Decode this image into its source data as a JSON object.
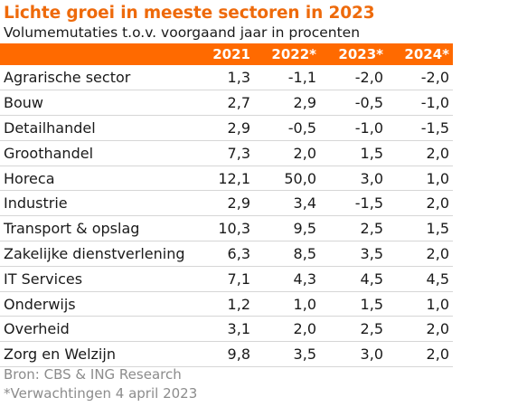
{
  "colors": {
    "accent": "#ff6a00",
    "title": "#ee6a0b",
    "footer": "#8c8c8c"
  },
  "chart_data": {
    "type": "table",
    "title": "Lichte groei in meeste sectoren in 2023",
    "subtitle": "Volumemutaties t.o.v. voorgaand jaar in procenten",
    "columns": [
      "",
      "2021",
      "2022*",
      "2023*",
      "2024*"
    ],
    "rows": [
      {
        "sector": "Agrarische sector",
        "values": [
          "1,3",
          "-1,1",
          "-2,0",
          "-2,0"
        ]
      },
      {
        "sector": "Bouw",
        "values": [
          "2,7",
          "2,9",
          "-0,5",
          "-1,0"
        ]
      },
      {
        "sector": "Detailhandel",
        "values": [
          "2,9",
          "-0,5",
          "-1,0",
          "-1,5"
        ]
      },
      {
        "sector": "Groothandel",
        "values": [
          "7,3",
          "2,0",
          "1,5",
          "2,0"
        ]
      },
      {
        "sector": "Horeca",
        "values": [
          "12,1",
          "50,0",
          "3,0",
          "1,0"
        ]
      },
      {
        "sector": "Industrie",
        "values": [
          "2,9",
          "3,4",
          "-1,5",
          "2,0"
        ]
      },
      {
        "sector": "Transport & opslag",
        "values": [
          "10,3",
          "9,5",
          "2,5",
          "1,5"
        ]
      },
      {
        "sector": "Zakelijke dienstverlening",
        "values": [
          "6,3",
          "8,5",
          "3,5",
          "2,0"
        ]
      },
      {
        "sector": "IT Services",
        "values": [
          "7,1",
          "4,3",
          "4,5",
          "4,5"
        ]
      },
      {
        "sector": "Onderwijs",
        "values": [
          "1,2",
          "1,0",
          "1,5",
          "1,0"
        ]
      },
      {
        "sector": "Overheid",
        "values": [
          "3,1",
          "2,0",
          "2,5",
          "2,0"
        ]
      },
      {
        "sector": "Zorg en Welzijn",
        "values": [
          "9,8",
          "3,5",
          "3,0",
          "2,0"
        ]
      }
    ],
    "source": "Bron: CBS & ING Research",
    "note": "*Verwachtingen 4 april 2023"
  }
}
